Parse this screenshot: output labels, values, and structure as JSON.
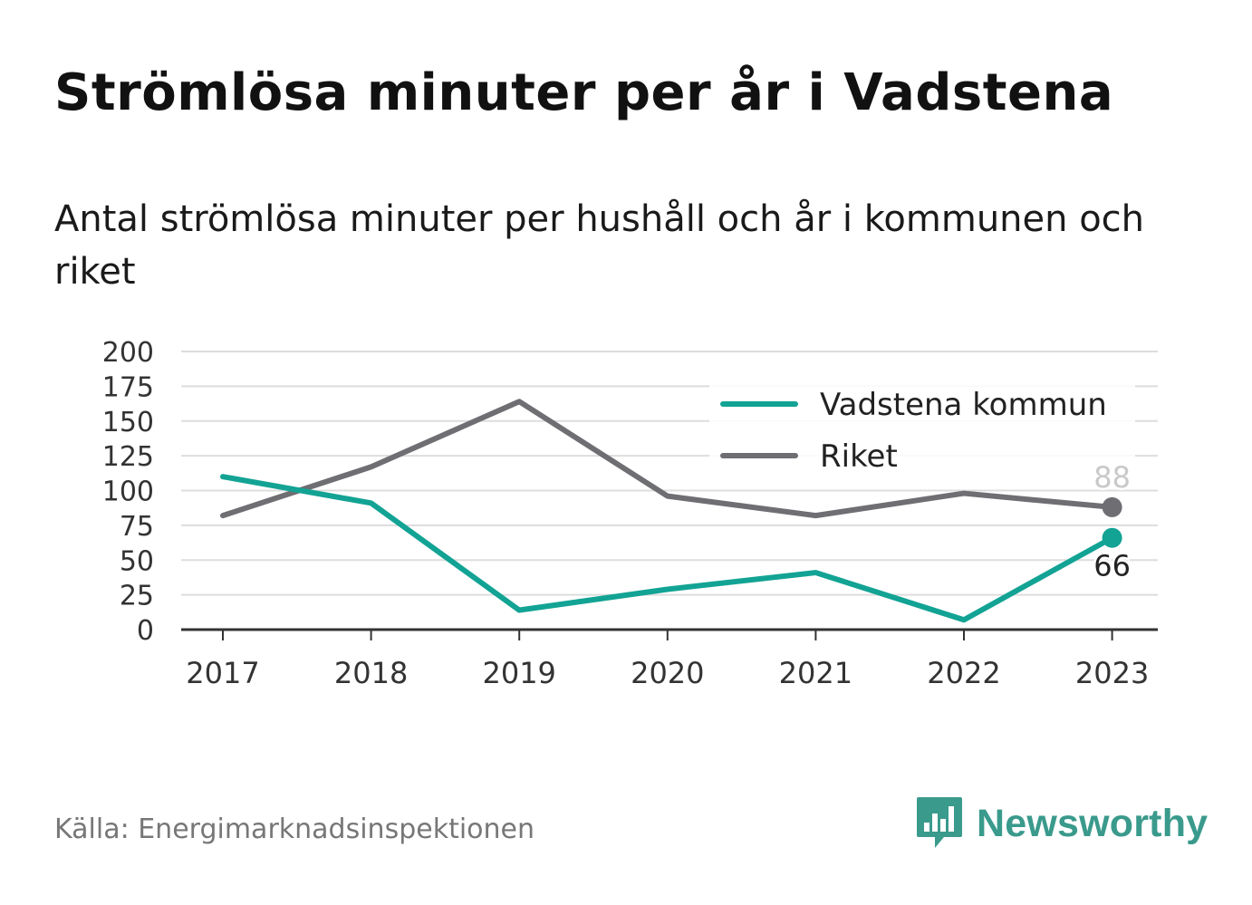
{
  "title": "Strömlösa minuter per år i Vadstena",
  "subtitle": "Antal strömlösa minuter per hushåll och år i kommunen och riket",
  "source": "Källa: Energimarknadsinspektionen",
  "brand": {
    "name": "Newsworthy",
    "icon": "newsworthy-logo-icon",
    "color": "#3a9a8c"
  },
  "chart_data": {
    "type": "line",
    "x": [
      "2017",
      "2018",
      "2019",
      "2020",
      "2021",
      "2022",
      "2023"
    ],
    "y_ticks": [
      0,
      25,
      50,
      75,
      100,
      125,
      150,
      175,
      200
    ],
    "ylim": [
      0,
      200
    ],
    "grid": true,
    "legend_position": "top-right",
    "series": [
      {
        "name": "Vadstena kommun",
        "color": "#12a394",
        "values": [
          110,
          91,
          14,
          29,
          41,
          7,
          66
        ],
        "end_label": "66"
      },
      {
        "name": "Riket",
        "color": "#6e6e73",
        "values": [
          82,
          117,
          164,
          96,
          82,
          98,
          88
        ],
        "end_label": "88"
      }
    ]
  }
}
